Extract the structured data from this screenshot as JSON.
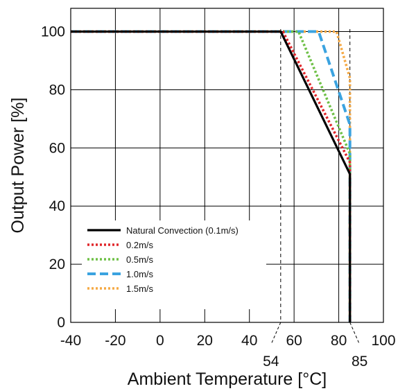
{
  "chart_data": {
    "type": "line",
    "xlabel": "Ambient Temperature [°C]",
    "ylabel": "Output Power [%]",
    "xlim": [
      -40,
      100
    ],
    "ylim": [
      0,
      108
    ],
    "xticks": [
      -40,
      -20,
      0,
      20,
      40,
      60,
      80,
      100
    ],
    "yticks": [
      0,
      20,
      40,
      60,
      80,
      100
    ],
    "extra_xticks": [
      54,
      85
    ],
    "grid": true,
    "legend_position": "lower-left",
    "series": [
      {
        "name": "Natural Convection (0.1m/s)",
        "color": "#000000",
        "style": "solid",
        "points": [
          [
            -40,
            100
          ],
          [
            54,
            100
          ],
          [
            85,
            51
          ],
          [
            85,
            0
          ]
        ]
      },
      {
        "name": "0.2m/s",
        "color": "#e0262a",
        "style": "dotted",
        "points": [
          [
            -40,
            100
          ],
          [
            55,
            100
          ],
          [
            85,
            55
          ],
          [
            85,
            0
          ]
        ]
      },
      {
        "name": "0.5m/s",
        "color": "#6ec046",
        "style": "dotted",
        "points": [
          [
            -40,
            100
          ],
          [
            62,
            100
          ],
          [
            85,
            58
          ],
          [
            85,
            0
          ]
        ]
      },
      {
        "name": "1.0m/s",
        "color": "#3ba3e0",
        "style": "dashed",
        "points": [
          [
            -40,
            100
          ],
          [
            71,
            100
          ],
          [
            85,
            68
          ],
          [
            85,
            0
          ]
        ]
      },
      {
        "name": "1.5m/s",
        "color": "#f5a944",
        "style": "dotted",
        "points": [
          [
            -40,
            100
          ],
          [
            79,
            100
          ],
          [
            85,
            84
          ],
          [
            85,
            0
          ]
        ]
      }
    ]
  }
}
